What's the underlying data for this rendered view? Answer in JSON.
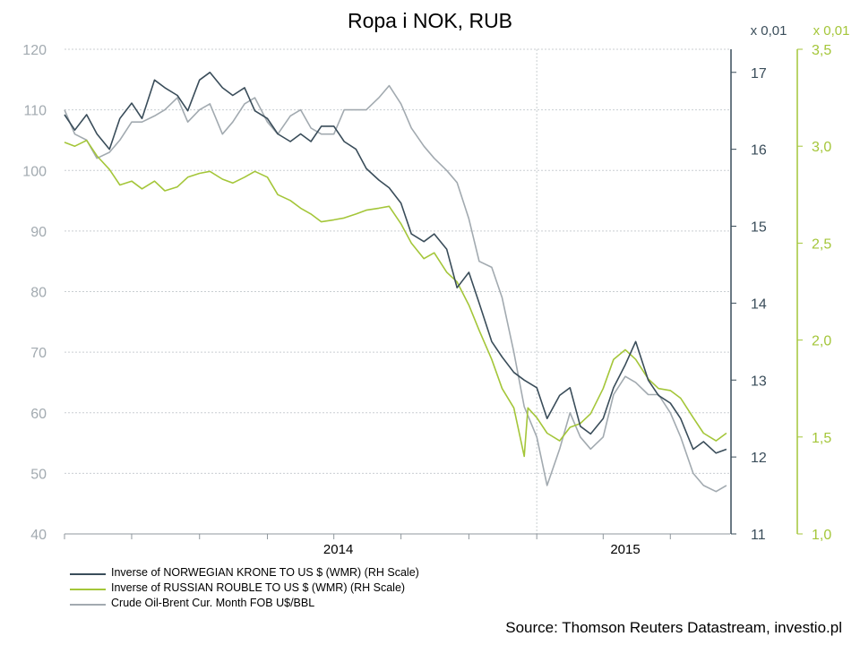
{
  "chart_data": {
    "type": "line",
    "title": "Ropa i NOK, RUB",
    "left_axis": {
      "ticks": [
        40,
        50,
        60,
        70,
        80,
        90,
        100,
        110,
        120
      ],
      "range": [
        40,
        120
      ],
      "color": "#a2aab0"
    },
    "right_axis_nok": {
      "unit": "x 0,01",
      "ticks": [
        "11",
        "12",
        "13",
        "14",
        "15",
        "16",
        "17"
      ],
      "range": [
        11,
        17.3
      ],
      "color": "#3a4d5a"
    },
    "right_axis_rub": {
      "unit": "x 0,01",
      "ticks": [
        "1,0",
        "1,5",
        "2,0",
        "2,5",
        "3,0",
        "3,5"
      ],
      "range": [
        1.0,
        3.5
      ],
      "color": "#a4c639"
    },
    "x_labels": [
      "2014",
      "2015"
    ],
    "x_range": [
      "2013-04",
      "2015-09"
    ],
    "grid": true,
    "legend_position": "bottom-left",
    "series": [
      {
        "name": "Inverse of NORWEGIAN KRONE TO US $ (WMR) (RH Scale)",
        "axis": "right_nok",
        "color": "#3a4d5a",
        "points": [
          [
            "2013-04-01",
            16.45
          ],
          [
            "2013-04-15",
            16.25
          ],
          [
            "2013-05-01",
            16.45
          ],
          [
            "2013-05-15",
            16.2
          ],
          [
            "2013-06-01",
            16.0
          ],
          [
            "2013-06-15",
            16.4
          ],
          [
            "2013-07-01",
            16.6
          ],
          [
            "2013-07-15",
            16.4
          ],
          [
            "2013-08-01",
            16.9
          ],
          [
            "2013-08-15",
            16.8
          ],
          [
            "2013-09-01",
            16.7
          ],
          [
            "2013-09-15",
            16.5
          ],
          [
            "2013-10-01",
            16.9
          ],
          [
            "2013-10-15",
            17.0
          ],
          [
            "2013-11-01",
            16.8
          ],
          [
            "2013-11-15",
            16.7
          ],
          [
            "2013-12-01",
            16.8
          ],
          [
            "2013-12-15",
            16.5
          ],
          [
            "2014-01-01",
            16.4
          ],
          [
            "2014-01-15",
            16.2
          ],
          [
            "2014-02-01",
            16.1
          ],
          [
            "2014-02-15",
            16.2
          ],
          [
            "2014-03-01",
            16.1
          ],
          [
            "2014-03-15",
            16.3
          ],
          [
            "2014-04-01",
            16.3
          ],
          [
            "2014-04-15",
            16.1
          ],
          [
            "2014-05-01",
            16.0
          ],
          [
            "2014-05-15",
            15.75
          ],
          [
            "2014-06-01",
            15.6
          ],
          [
            "2014-06-15",
            15.5
          ],
          [
            "2014-07-01",
            15.3
          ],
          [
            "2014-07-15",
            14.9
          ],
          [
            "2014-08-01",
            14.8
          ],
          [
            "2014-08-15",
            14.9
          ],
          [
            "2014-09-01",
            14.7
          ],
          [
            "2014-09-15",
            14.2
          ],
          [
            "2014-10-01",
            14.4
          ],
          [
            "2014-10-15",
            14.0
          ],
          [
            "2014-11-01",
            13.5
          ],
          [
            "2014-11-15",
            13.3
          ],
          [
            "2014-12-01",
            13.1
          ],
          [
            "2014-12-15",
            13.0
          ],
          [
            "2015-01-01",
            12.9
          ],
          [
            "2015-01-15",
            12.5
          ],
          [
            "2015-02-01",
            12.8
          ],
          [
            "2015-02-15",
            12.9
          ],
          [
            "2015-03-01",
            12.4
          ],
          [
            "2015-03-15",
            12.3
          ],
          [
            "2015-04-01",
            12.5
          ],
          [
            "2015-04-15",
            12.9
          ],
          [
            "2015-05-01",
            13.2
          ],
          [
            "2015-05-15",
            13.5
          ],
          [
            "2015-06-01",
            13.0
          ],
          [
            "2015-06-15",
            12.8
          ],
          [
            "2015-07-01",
            12.7
          ],
          [
            "2015-07-15",
            12.5
          ],
          [
            "2015-08-01",
            12.1
          ],
          [
            "2015-08-15",
            12.2
          ],
          [
            "2015-09-01",
            12.05
          ],
          [
            "2015-09-15",
            12.1
          ]
        ]
      },
      {
        "name": "Inverse of RUSSIAN ROUBLE TO US $ (WMR) (RH Scale)",
        "axis": "right_rub",
        "color": "#a4c639",
        "points": [
          [
            "2013-04-01",
            3.02
          ],
          [
            "2013-04-15",
            3.0
          ],
          [
            "2013-05-01",
            3.03
          ],
          [
            "2013-05-15",
            2.95
          ],
          [
            "2013-06-01",
            2.88
          ],
          [
            "2013-06-15",
            2.8
          ],
          [
            "2013-07-01",
            2.82
          ],
          [
            "2013-07-15",
            2.78
          ],
          [
            "2013-08-01",
            2.82
          ],
          [
            "2013-08-15",
            2.77
          ],
          [
            "2013-09-01",
            2.79
          ],
          [
            "2013-09-15",
            2.84
          ],
          [
            "2013-10-01",
            2.86
          ],
          [
            "2013-10-15",
            2.87
          ],
          [
            "2013-11-01",
            2.83
          ],
          [
            "2013-11-15",
            2.81
          ],
          [
            "2013-12-01",
            2.84
          ],
          [
            "2013-12-15",
            2.87
          ],
          [
            "2014-01-01",
            2.84
          ],
          [
            "2014-01-15",
            2.75
          ],
          [
            "2014-02-01",
            2.72
          ],
          [
            "2014-02-15",
            2.68
          ],
          [
            "2014-03-01",
            2.65
          ],
          [
            "2014-03-15",
            2.61
          ],
          [
            "2014-04-01",
            2.62
          ],
          [
            "2014-04-15",
            2.63
          ],
          [
            "2014-05-01",
            2.65
          ],
          [
            "2014-05-15",
            2.67
          ],
          [
            "2014-06-01",
            2.68
          ],
          [
            "2014-06-15",
            2.69
          ],
          [
            "2014-07-01",
            2.6
          ],
          [
            "2014-07-15",
            2.5
          ],
          [
            "2014-08-01",
            2.42
          ],
          [
            "2014-08-15",
            2.45
          ],
          [
            "2014-09-01",
            2.35
          ],
          [
            "2014-09-15",
            2.3
          ],
          [
            "2014-10-01",
            2.18
          ],
          [
            "2014-10-15",
            2.05
          ],
          [
            "2014-11-01",
            1.9
          ],
          [
            "2014-11-15",
            1.75
          ],
          [
            "2014-12-01",
            1.65
          ],
          [
            "2014-12-15",
            1.4
          ],
          [
            "2014-12-20",
            1.65
          ],
          [
            "2015-01-01",
            1.6
          ],
          [
            "2015-01-15",
            1.52
          ],
          [
            "2015-02-01",
            1.48
          ],
          [
            "2015-02-15",
            1.55
          ],
          [
            "2015-03-01",
            1.57
          ],
          [
            "2015-03-15",
            1.62
          ],
          [
            "2015-04-01",
            1.75
          ],
          [
            "2015-04-15",
            1.9
          ],
          [
            "2015-05-01",
            1.95
          ],
          [
            "2015-05-15",
            1.9
          ],
          [
            "2015-06-01",
            1.8
          ],
          [
            "2015-06-15",
            1.75
          ],
          [
            "2015-07-01",
            1.74
          ],
          [
            "2015-07-15",
            1.7
          ],
          [
            "2015-08-01",
            1.6
          ],
          [
            "2015-08-15",
            1.52
          ],
          [
            "2015-09-01",
            1.48
          ],
          [
            "2015-09-15",
            1.52
          ]
        ]
      },
      {
        "name": "Crude Oil-Brent Cur. Month FOB U$/BBL",
        "axis": "left",
        "color": "#a2aab0",
        "points": [
          [
            "2013-04-01",
            110
          ],
          [
            "2013-04-15",
            106
          ],
          [
            "2013-05-01",
            105
          ],
          [
            "2013-05-15",
            102
          ],
          [
            "2013-06-01",
            103
          ],
          [
            "2013-06-15",
            105
          ],
          [
            "2013-07-01",
            108
          ],
          [
            "2013-07-15",
            108
          ],
          [
            "2013-08-01",
            109
          ],
          [
            "2013-08-15",
            110
          ],
          [
            "2013-09-01",
            112
          ],
          [
            "2013-09-15",
            108
          ],
          [
            "2013-10-01",
            110
          ],
          [
            "2013-10-15",
            111
          ],
          [
            "2013-11-01",
            106
          ],
          [
            "2013-11-15",
            108
          ],
          [
            "2013-12-01",
            111
          ],
          [
            "2013-12-15",
            112
          ],
          [
            "2014-01-01",
            108
          ],
          [
            "2014-01-15",
            106
          ],
          [
            "2014-02-01",
            109
          ],
          [
            "2014-02-15",
            110
          ],
          [
            "2014-03-01",
            107
          ],
          [
            "2014-03-15",
            106
          ],
          [
            "2014-04-01",
            106
          ],
          [
            "2014-04-15",
            110
          ],
          [
            "2014-05-01",
            110
          ],
          [
            "2014-05-15",
            110
          ],
          [
            "2014-06-01",
            112
          ],
          [
            "2014-06-15",
            114
          ],
          [
            "2014-07-01",
            111
          ],
          [
            "2014-07-15",
            107
          ],
          [
            "2014-08-01",
            104
          ],
          [
            "2014-08-15",
            102
          ],
          [
            "2014-09-01",
            100
          ],
          [
            "2014-09-15",
            98
          ],
          [
            "2014-10-01",
            92
          ],
          [
            "2014-10-15",
            85
          ],
          [
            "2014-11-01",
            84
          ],
          [
            "2014-11-15",
            79
          ],
          [
            "2014-12-01",
            70
          ],
          [
            "2014-12-15",
            61
          ],
          [
            "2015-01-01",
            56
          ],
          [
            "2015-01-15",
            48
          ],
          [
            "2015-02-01",
            54
          ],
          [
            "2015-02-15",
            60
          ],
          [
            "2015-03-01",
            56
          ],
          [
            "2015-03-15",
            54
          ],
          [
            "2015-04-01",
            56
          ],
          [
            "2015-04-15",
            63
          ],
          [
            "2015-05-01",
            66
          ],
          [
            "2015-05-15",
            65
          ],
          [
            "2015-06-01",
            63
          ],
          [
            "2015-06-15",
            63
          ],
          [
            "2015-07-01",
            60
          ],
          [
            "2015-07-15",
            56
          ],
          [
            "2015-08-01",
            50
          ],
          [
            "2015-08-15",
            48
          ],
          [
            "2015-09-01",
            47
          ],
          [
            "2015-09-15",
            48
          ]
        ]
      }
    ]
  },
  "source_text": "Source: Thomson Reuters Datastream, investio.pl",
  "colors": {
    "grid": "#c9ced2",
    "axis": "#8f979d"
  }
}
